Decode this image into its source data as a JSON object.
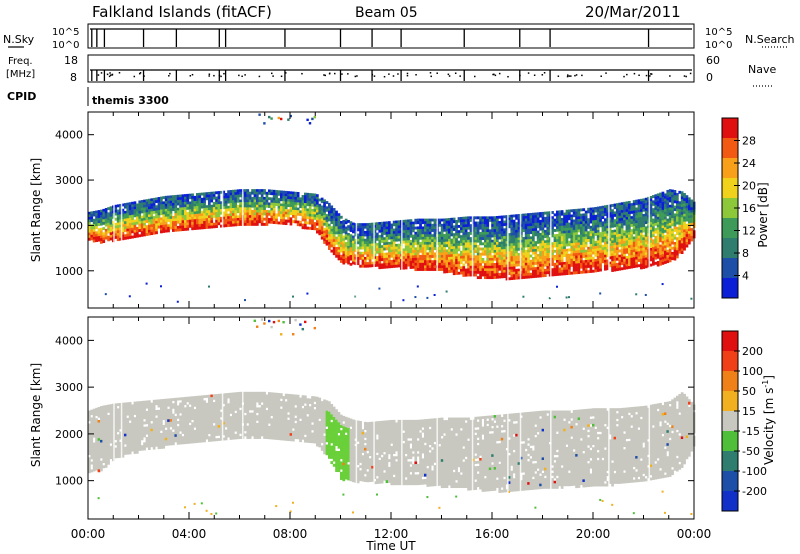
{
  "header": {
    "station": "Falkland Islands (fitACF)",
    "beam": "Beam 05",
    "date": "20/Mar/2011"
  },
  "aux_panels": {
    "nsky_label": "N.Sky",
    "nsearch_label": "N.Search",
    "nsky_ticks": [
      "10^5",
      "10^0"
    ],
    "nsearch_ticks": [
      "10^5",
      "10^0"
    ],
    "freq_label": "Freq.",
    "freq_unit": "[MHz]",
    "freq_ticks": [
      "18",
      "8"
    ],
    "nave_label": "Nave",
    "nave_ticks": [
      "60",
      "0"
    ],
    "cpid_label": "CPID",
    "cpid_value": "themis 3300"
  },
  "chart_data": [
    {
      "type": "heatmap",
      "parameter": "Power",
      "ylabel": "Slant Range [km]",
      "xlabel": "Time UT",
      "x_ticks": [
        "00:00",
        "04:00",
        "08:00",
        "12:00",
        "16:00",
        "20:00",
        "00:00"
      ],
      "x_range_hours": [
        0,
        24
      ],
      "ylim": [
        180,
        4500
      ],
      "y_ticks": [
        1000,
        2000,
        3000,
        4000
      ],
      "colorbar_label": "Power [dB]",
      "colorbar_ticks": [
        4,
        8,
        12,
        16,
        20,
        24,
        28
      ],
      "colorbar_range": [
        0,
        32
      ],
      "colors": [
        "#0a1fd6",
        "#1e4fa8",
        "#2e7d6e",
        "#3d9a58",
        "#8dc83a",
        "#f0d21c",
        "#f8a01a",
        "#f25a14",
        "#e01010"
      ],
      "echo_band_profile": {
        "hours": [
          0,
          0.5,
          1,
          2,
          3,
          4,
          5,
          6,
          7,
          8,
          9,
          9.5,
          10,
          10.5,
          11,
          12,
          13,
          14,
          15,
          16,
          17,
          18,
          19,
          20,
          21,
          22,
          23,
          23.5,
          24
        ],
        "lower_km": [
          1700,
          1650,
          1700,
          1800,
          1850,
          1950,
          2000,
          2050,
          2050,
          2050,
          1900,
          1500,
          1200,
          1150,
          1100,
          1100,
          1050,
          1000,
          900,
          850,
          850,
          900,
          950,
          1000,
          1050,
          1100,
          1200,
          1400,
          1800
        ],
        "upper_km": [
          2300,
          2350,
          2450,
          2550,
          2650,
          2700,
          2750,
          2800,
          2800,
          2750,
          2700,
          2500,
          2200,
          2050,
          2050,
          2100,
          2150,
          2150,
          2200,
          2200,
          2250,
          2300,
          2350,
          2400,
          2500,
          2600,
          2800,
          2750,
          2500
        ]
      }
    },
    {
      "type": "heatmap",
      "parameter": "Velocity",
      "ylabel": "Slant Range [km]",
      "xlabel": "Time UT",
      "x_ticks": [
        "00:00",
        "04:00",
        "08:00",
        "12:00",
        "16:00",
        "20:00",
        "00:00"
      ],
      "x_range_hours": [
        0,
        24
      ],
      "ylim": [
        180,
        4500
      ],
      "y_ticks": [
        1000,
        2000,
        3000,
        4000
      ],
      "colorbar_label": "Velocity [m s^-1]",
      "colorbar_unit_main": "Velocity [m s",
      "colorbar_unit_exp": "-1",
      "colorbar_unit_close": "]",
      "colorbar_ticks": [
        "200",
        "100",
        "50",
        "15",
        "-15",
        "-50",
        "-100",
        "-200"
      ],
      "colors": [
        "#1030c8",
        "#1e4fa8",
        "#2e7d6e",
        "#4fbf3a",
        "#c8c8c0",
        "#f0b020",
        "#f08018",
        "#f04018",
        "#e01010"
      ],
      "ground_scatter_color": "#c8c8c0",
      "echo_band_profile": {
        "hours": [
          0,
          0.5,
          1,
          2,
          3,
          4,
          5,
          6,
          7,
          8,
          9,
          9.5,
          10,
          10.5,
          11,
          12,
          13,
          14,
          15,
          16,
          17,
          18,
          19,
          20,
          21,
          22,
          23,
          23.5,
          24
        ],
        "lower_km": [
          1200,
          1250,
          1500,
          1650,
          1750,
          1850,
          1900,
          1950,
          1950,
          1900,
          1800,
          1500,
          1050,
          1000,
          1000,
          950,
          950,
          900,
          850,
          800,
          800,
          850,
          900,
          900,
          950,
          1000,
          1100,
          1300,
          1800
        ],
        "upper_km": [
          2500,
          2600,
          2650,
          2700,
          2750,
          2800,
          2850,
          2900,
          2900,
          2850,
          2800,
          2700,
          2400,
          2300,
          2250,
          2300,
          2300,
          2350,
          2350,
          2400,
          2450,
          2500,
          2500,
          2550,
          2550,
          2600,
          2700,
          2900,
          2600
        ]
      }
    }
  ]
}
